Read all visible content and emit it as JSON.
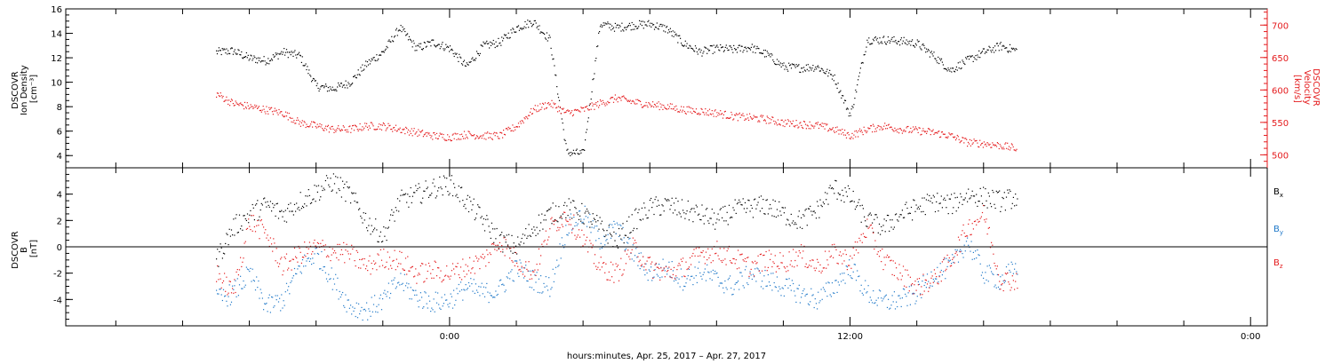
{
  "chart_data": [
    {
      "type": "scatter",
      "panel": "top",
      "ylabel_lines": [
        "DSCOVR",
        "Ion Density",
        "[cm⁻³]"
      ],
      "y2label_lines": [
        "DSCOVR",
        "Velocity",
        "[km/s]"
      ],
      "ylim": [
        3,
        16
      ],
      "yticks": [
        4,
        6,
        8,
        10,
        12,
        14,
        16
      ],
      "y2lim": [
        480,
        725
      ],
      "y2ticks": [
        500,
        550,
        600,
        650,
        700
      ],
      "colors": {
        "density": "#000000",
        "velocity": "#e41a1c"
      },
      "series": [
        {
          "key": "density",
          "axis": "left",
          "x_hours": [
            -7.0,
            -6.5,
            -6.0,
            -5.5,
            -5.0,
            -4.5,
            -4.0,
            -3.5,
            -3.0,
            -2.5,
            -2.0,
            -1.5,
            -1.0,
            -0.5,
            0.0,
            0.5,
            1.0,
            1.5,
            2.0,
            2.5,
            3.0,
            3.5,
            4.0,
            4.5,
            5.0,
            5.5,
            6.0,
            6.5,
            7.0,
            7.5,
            8.0,
            8.5,
            9.0,
            9.5,
            10.0,
            10.5,
            11.0,
            11.5,
            12.0,
            12.5,
            13.0,
            13.5,
            14.0,
            14.5,
            15.0,
            15.5,
            16.0,
            16.5,
            17.0
          ],
          "values": [
            12.5,
            12.6,
            12.0,
            11.8,
            12.5,
            12.2,
            9.7,
            9.5,
            10.0,
            11.5,
            12.5,
            14.5,
            12.8,
            13.3,
            12.8,
            11.3,
            13.0,
            13.3,
            14.5,
            15.0,
            13.5,
            4.3,
            4.2,
            14.8,
            14.5,
            14.7,
            14.8,
            14.4,
            13.2,
            12.5,
            12.8,
            12.7,
            12.9,
            12.3,
            11.3,
            11.2,
            11.3,
            10.5,
            7.3,
            13.5,
            13.5,
            13.4,
            13.2,
            12.2,
            11.0,
            11.8,
            12.5,
            13.0,
            12.6
          ]
        },
        {
          "key": "velocity",
          "axis": "right",
          "x_hours": [
            -7.0,
            -6.5,
            -6.0,
            -5.5,
            -5.0,
            -4.5,
            -4.0,
            -3.5,
            -3.0,
            -2.5,
            -2.0,
            -1.5,
            -1.0,
            -0.5,
            0.0,
            0.5,
            1.0,
            1.5,
            2.0,
            2.5,
            3.0,
            3.5,
            4.0,
            4.5,
            5.0,
            5.5,
            6.0,
            6.5,
            7.0,
            7.5,
            8.0,
            8.5,
            9.0,
            9.5,
            10.0,
            10.5,
            11.0,
            11.5,
            12.0,
            12.5,
            13.0,
            13.5,
            14.0,
            14.5,
            15.0,
            15.5,
            16.0,
            16.5,
            17.0
          ],
          "values": [
            595,
            580,
            575,
            570,
            565,
            550,
            545,
            540,
            540,
            545,
            545,
            540,
            535,
            530,
            528,
            532,
            530,
            530,
            545,
            570,
            580,
            565,
            570,
            580,
            588,
            582,
            578,
            575,
            570,
            568,
            565,
            560,
            558,
            555,
            550,
            548,
            546,
            540,
            530,
            540,
            545,
            540,
            538,
            535,
            530,
            520,
            518,
            515,
            510
          ]
        }
      ]
    },
    {
      "type": "scatter",
      "panel": "bottom",
      "ylabel_lines": [
        "DSCOVR",
        "B",
        "[nT]"
      ],
      "ylim": [
        -6,
        6
      ],
      "yticks": [
        -4,
        -2,
        0,
        2,
        4
      ],
      "zero_line": true,
      "legend": [
        {
          "key": "bx",
          "label": "B",
          "sub": "x",
          "color": "#000000"
        },
        {
          "key": "by",
          "label": "B",
          "sub": "y",
          "color": "#1f78c8"
        },
        {
          "key": "bz",
          "label": "B",
          "sub": "z",
          "color": "#e41a1c"
        }
      ],
      "series": [
        {
          "key": "bx",
          "x_hours": [
            -7.0,
            -6.5,
            -6.0,
            -5.5,
            -5.0,
            -4.5,
            -4.0,
            -3.5,
            -3.0,
            -2.5,
            -2.0,
            -1.5,
            -1.0,
            -0.5,
            0.0,
            0.5,
            1.0,
            1.5,
            2.0,
            2.5,
            3.0,
            3.5,
            4.0,
            4.5,
            5.0,
            5.5,
            6.0,
            6.5,
            7.0,
            7.5,
            8.0,
            8.5,
            9.0,
            9.5,
            10.0,
            10.5,
            11.0,
            11.5,
            12.0,
            12.5,
            13.0,
            13.5,
            14.0,
            14.5,
            15.0,
            15.5,
            16.0,
            16.5,
            17.0
          ],
          "values": [
            -1.0,
            1.5,
            2.5,
            3.2,
            2.5,
            3.5,
            4.2,
            5.0,
            4.0,
            2.0,
            0.8,
            3.5,
            4.0,
            4.5,
            4.8,
            3.5,
            2.0,
            0.5,
            0.0,
            1.5,
            2.5,
            3.0,
            2.5,
            1.5,
            0.5,
            2.0,
            3.0,
            3.2,
            2.8,
            2.5,
            2.0,
            2.8,
            3.0,
            3.2,
            2.5,
            2.0,
            2.8,
            4.5,
            3.8,
            2.0,
            1.5,
            2.5,
            3.0,
            3.5,
            3.2,
            4.0,
            3.8,
            3.5,
            3.8
          ]
        },
        {
          "key": "by",
          "x_hours": [
            -7.0,
            -6.5,
            -6.0,
            -5.5,
            -5.0,
            -4.5,
            -4.0,
            -3.5,
            -3.0,
            -2.5,
            -2.0,
            -1.5,
            -1.0,
            -0.5,
            0.0,
            0.5,
            1.0,
            1.5,
            2.0,
            2.5,
            3.0,
            3.5,
            4.0,
            4.5,
            5.0,
            5.5,
            6.0,
            6.5,
            7.0,
            7.5,
            8.0,
            8.5,
            9.0,
            9.5,
            10.0,
            10.5,
            11.0,
            11.5,
            12.0,
            12.5,
            13.0,
            13.5,
            14.0,
            14.5,
            15.0,
            15.5,
            16.0,
            16.5,
            17.0
          ],
          "values": [
            -4.0,
            -3.5,
            -2.0,
            -4.5,
            -4.0,
            -1.5,
            -0.5,
            -2.5,
            -4.5,
            -4.8,
            -4.0,
            -2.5,
            -3.8,
            -4.2,
            -4.0,
            -3.0,
            -3.5,
            -3.2,
            -1.5,
            -2.5,
            -3.0,
            1.5,
            2.5,
            0.5,
            1.5,
            -0.5,
            -2.0,
            -1.5,
            -2.5,
            -1.8,
            -2.5,
            -3.0,
            -2.0,
            -2.5,
            -3.0,
            -3.5,
            -4.0,
            -3.0,
            -1.5,
            -3.5,
            -4.2,
            -4.0,
            -3.5,
            -2.0,
            -1.5,
            0.5,
            -2.0,
            -2.5,
            -1.5
          ]
        },
        {
          "key": "bz",
          "x_hours": [
            -7.0,
            -6.5,
            -6.0,
            -5.5,
            -5.0,
            -4.5,
            -4.0,
            -3.5,
            -3.0,
            -2.5,
            -2.0,
            -1.5,
            -1.0,
            -0.5,
            0.0,
            0.5,
            1.0,
            1.5,
            2.0,
            2.5,
            3.0,
            3.5,
            4.0,
            4.5,
            5.0,
            5.5,
            6.0,
            6.5,
            7.0,
            7.5,
            8.0,
            8.5,
            9.0,
            9.5,
            10.0,
            10.5,
            11.0,
            11.5,
            12.0,
            12.5,
            13.0,
            13.5,
            14.0,
            14.5,
            15.0,
            15.5,
            16.0,
            16.5,
            17.0
          ],
          "values": [
            -2.0,
            -3.5,
            2.0,
            1.0,
            -1.5,
            -0.5,
            0.0,
            -0.3,
            -0.5,
            -1.5,
            -0.8,
            -1.0,
            -2.0,
            -1.8,
            -2.0,
            -1.5,
            -1.0,
            0.5,
            -1.0,
            -2.0,
            1.5,
            2.5,
            0.5,
            -1.5,
            -2.0,
            0.0,
            -1.5,
            -2.0,
            -1.5,
            -0.5,
            -0.3,
            -0.8,
            -1.5,
            -1.0,
            -1.2,
            -0.5,
            -1.5,
            -0.5,
            -1.0,
            1.5,
            -1.0,
            -2.0,
            -3.0,
            -2.5,
            -1.0,
            1.5,
            2.5,
            -2.5,
            -2.5
          ]
        }
      ]
    }
  ],
  "x_axis": {
    "range_hours": [
      -11.5,
      24.5
    ],
    "major_ticks": [
      {
        "hour": 0,
        "label": "0:00"
      },
      {
        "hour": 12,
        "label": "12:00"
      },
      {
        "hour": 24,
        "label": "0:00"
      }
    ],
    "minor_tick_hours": [
      -10,
      -8,
      -6,
      -4,
      -2,
      2,
      4,
      6,
      8,
      10,
      14,
      16,
      18,
      20,
      22
    ],
    "caption": "hours:minutes, Apr. 25, 2017 – Apr. 27, 2017"
  }
}
